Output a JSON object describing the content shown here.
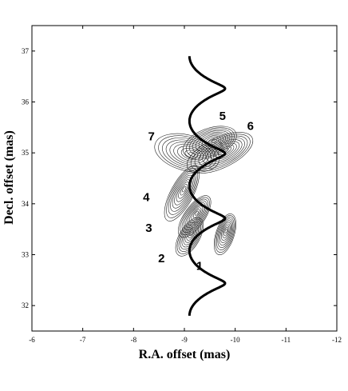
{
  "chart_data": {
    "type": "contour",
    "title": "",
    "xlabel": "R.A. offset (mas)",
    "ylabel": "Decl. offset (mas)",
    "xlim": [
      -6,
      -12
    ],
    "ylim": [
      31.5,
      37.5
    ],
    "x_ticks": [
      "-6",
      "-7",
      "-8",
      "-9",
      "-10",
      "-11",
      "-12"
    ],
    "y_ticks": [
      "32",
      "33",
      "34",
      "35",
      "36",
      "37"
    ],
    "x_tick_values": [
      -6,
      -7,
      -8,
      -9,
      -10,
      -11,
      -12
    ],
    "y_tick_values": [
      32,
      33,
      34,
      35,
      36,
      37
    ],
    "grid": false,
    "components": [
      {
        "label": "1",
        "x": -9.8,
        "y": 33.4,
        "major": 0.42,
        "minor": 0.18,
        "angle": 72,
        "label_x": -9.3,
        "label_y": 32.7
      },
      {
        "label": "2",
        "x": -9.1,
        "y": 33.35,
        "major": 0.42,
        "minor": 0.2,
        "angle": 60,
        "label_x": -8.55,
        "label_y": 32.85
      },
      {
        "label": "3",
        "x": -9.2,
        "y": 33.75,
        "major": 0.48,
        "minor": 0.2,
        "angle": 55,
        "label_x": -8.3,
        "label_y": 33.45
      },
      {
        "label": "4",
        "x": -8.95,
        "y": 34.2,
        "major": 0.6,
        "minor": 0.22,
        "angle": 62,
        "label_x": -8.25,
        "label_y": 34.05
      },
      {
        "label": "5",
        "x": -9.5,
        "y": 35.2,
        "major": 0.55,
        "minor": 0.28,
        "angle": 20,
        "label_x": -9.75,
        "label_y": 35.65
      },
      {
        "label": "6",
        "x": -9.7,
        "y": 35.0,
        "major": 0.7,
        "minor": 0.3,
        "angle": 25,
        "label_x": -10.3,
        "label_y": 35.45
      },
      {
        "label": "7",
        "x": -9.05,
        "y": 35.0,
        "major": 0.65,
        "minor": 0.35,
        "angle": -15,
        "label_x": -8.35,
        "label_y": 35.25
      }
    ],
    "trajectory": {
      "center_x": -9.45,
      "amplitude": 0.35,
      "y_start": 31.8,
      "y_end": 36.9,
      "turns": 4,
      "loop_radius": 0.12
    },
    "contour_levels": 10
  }
}
